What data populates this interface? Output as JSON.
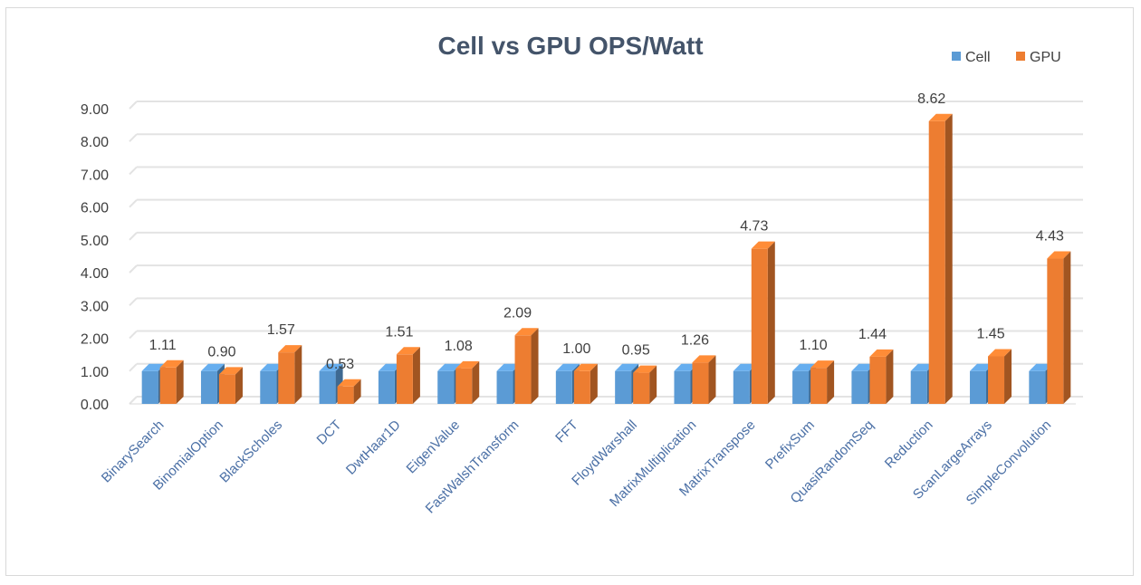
{
  "chart_data": {
    "type": "bar",
    "title": "Cell vs GPU OPS/Watt",
    "xlabel": "",
    "ylabel": "",
    "ylim": [
      0,
      9
    ],
    "yticks": [
      "0.00",
      "1.00",
      "2.00",
      "3.00",
      "4.00",
      "5.00",
      "6.00",
      "7.00",
      "8.00",
      "9.00"
    ],
    "grid": true,
    "legend_position": "top-right",
    "categories": [
      "BinarySearch",
      "BinomialOption",
      "BlackScholes",
      "DCT",
      "DwtHaar1D",
      "EigenValue",
      "FastWalshTransform",
      "FFT",
      "FloydWarshall",
      "MatrixMultiplication",
      "MatrixTranspose",
      "PrefixSum",
      "QuasiRandomSeq",
      "Reduction",
      "ScanLargeArrays",
      "SimpleConvolution"
    ],
    "series": [
      {
        "name": "Cell",
        "color": "#5b9bd5",
        "values": [
          1.0,
          1.0,
          1.0,
          1.0,
          1.0,
          1.0,
          1.0,
          1.0,
          1.0,
          1.0,
          1.0,
          1.0,
          1.0,
          1.0,
          1.0,
          1.0
        ]
      },
      {
        "name": "GPU",
        "color": "#ed7d31",
        "values": [
          1.11,
          0.9,
          1.57,
          0.53,
          1.51,
          1.08,
          2.09,
          1.0,
          0.95,
          1.26,
          4.73,
          1.1,
          1.44,
          8.62,
          1.45,
          4.43
        ],
        "labels": [
          "1.11",
          "0.90",
          "1.57",
          "0.53",
          "1.51",
          "1.08",
          "2.09",
          "1.00",
          "0.95",
          "1.26",
          "4.73",
          "1.10",
          "1.44",
          "8.62",
          "1.45",
          "4.43"
        ]
      }
    ]
  }
}
